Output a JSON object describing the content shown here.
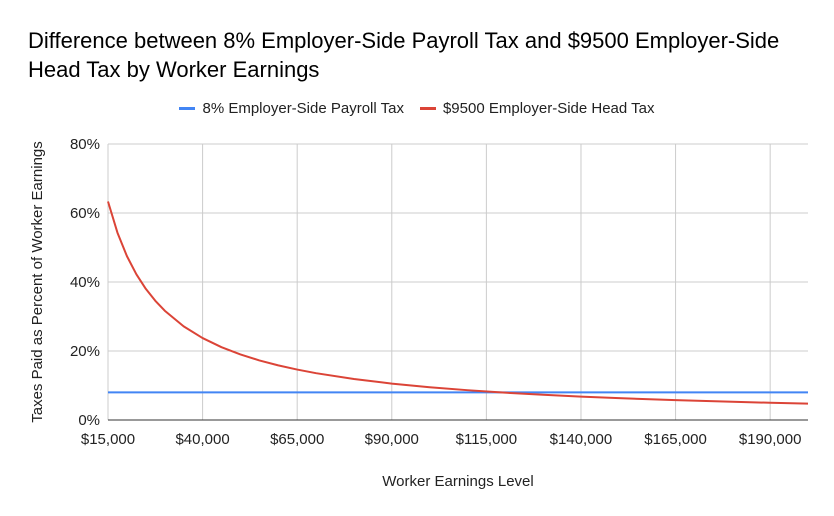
{
  "chart_data": {
    "type": "line",
    "title": "Difference between 8% Employer-Side Payroll Tax and $9500 Employer-Side Head Tax by Worker Earnings",
    "xlabel": "Worker Earnings Level",
    "ylabel": "Taxes Paid as Percent of Worker Earnings",
    "xlim": [
      15000,
      200000
    ],
    "ylim": [
      0,
      0.8
    ],
    "x_ticks": [
      15000,
      40000,
      65000,
      90000,
      115000,
      140000,
      165000,
      190000
    ],
    "x_tick_labels": [
      "$15,000",
      "$40,000",
      "$65,000",
      "$90,000",
      "$115,000",
      "$140,000",
      "$165,000",
      "$190,000"
    ],
    "y_ticks": [
      0,
      0.2,
      0.4,
      0.6,
      0.8
    ],
    "y_tick_labels": [
      "0%",
      "20%",
      "40%",
      "60%",
      "80%"
    ],
    "grid": true,
    "legend_position": "top",
    "series": [
      {
        "name": "8% Employer-Side Payroll Tax",
        "color": "#4285f4",
        "x": [
          15000,
          200000
        ],
        "values": [
          0.08,
          0.08
        ]
      },
      {
        "name": "$9500 Employer-Side Head Tax",
        "color": "#db4437",
        "x": [
          15000,
          17500,
          20000,
          22500,
          25000,
          27500,
          30000,
          35000,
          40000,
          45000,
          50000,
          55000,
          60000,
          65000,
          70000,
          80000,
          90000,
          100000,
          110000,
          118750,
          130000,
          140000,
          150000,
          165000,
          180000,
          190000,
          200000
        ],
        "values": [
          0.6333,
          0.5429,
          0.475,
          0.4222,
          0.38,
          0.3455,
          0.3167,
          0.2714,
          0.2375,
          0.2111,
          0.19,
          0.1727,
          0.1583,
          0.1462,
          0.1357,
          0.1188,
          0.1056,
          0.095,
          0.0864,
          0.08,
          0.0731,
          0.0679,
          0.0633,
          0.0576,
          0.0528,
          0.05,
          0.0475
        ]
      }
    ]
  }
}
